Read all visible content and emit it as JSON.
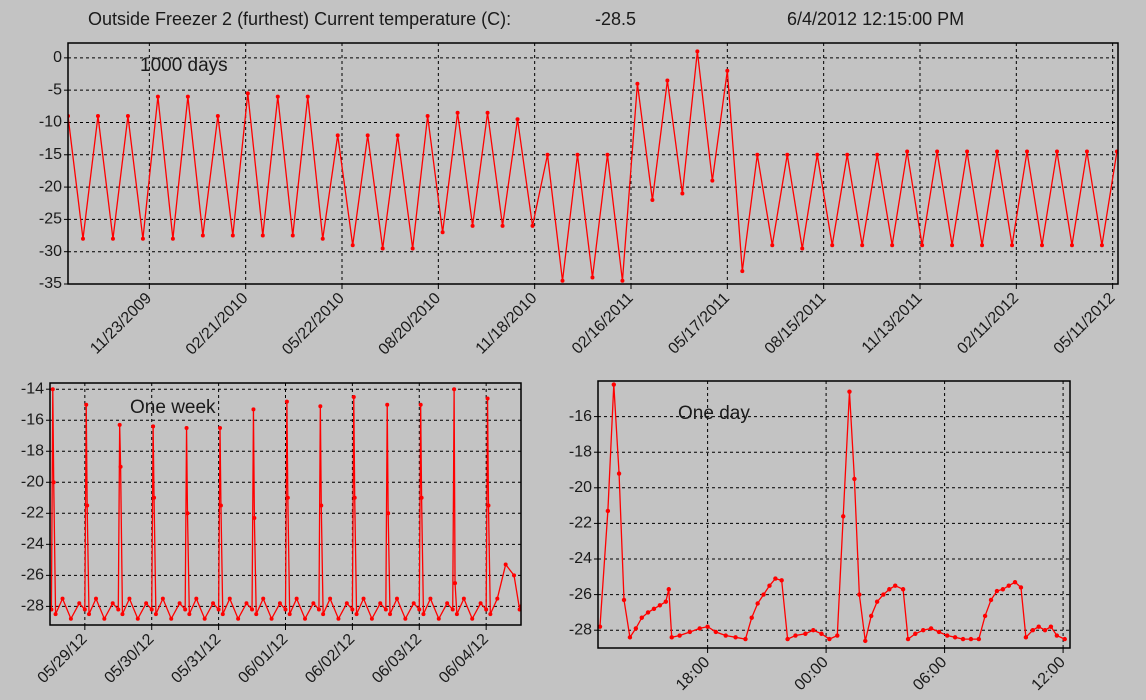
{
  "header": {
    "title": "Outside Freezer 2 (furthest)  Current temperature (C):",
    "current_temperature": -28.5,
    "timestamp": "6/4/2012 12:15:00 PM"
  },
  "chart_data": [
    {
      "type": "line",
      "annotation": "1000 days",
      "color": "#ff0000",
      "grid": true,
      "x": [
        "09/08/2009",
        "09/22/2009",
        "10/06/2009",
        "10/20/2009",
        "11/03/2009",
        "11/17/2009",
        "12/01/2009",
        "12/15/2009",
        "12/29/2009",
        "01/12/2010",
        "01/26/2010",
        "02/09/2010",
        "02/23/2010",
        "03/09/2010",
        "03/23/2010",
        "04/06/2010",
        "04/20/2010",
        "05/04/2010",
        "05/18/2010",
        "06/01/2010",
        "06/15/2010",
        "06/29/2010",
        "07/13/2010",
        "07/27/2010",
        "08/10/2010",
        "08/24/2010",
        "09/07/2010",
        "09/21/2010",
        "10/05/2010",
        "10/19/2010",
        "11/02/2010",
        "11/16/2010",
        "11/30/2010",
        "12/14/2010",
        "12/28/2010",
        "01/11/2011",
        "01/25/2011",
        "02/08/2011",
        "02/22/2011",
        "03/08/2011",
        "03/22/2011",
        "04/05/2011",
        "04/19/2011",
        "05/03/2011",
        "05/17/2011",
        "05/31/2011",
        "06/14/2011",
        "06/28/2011",
        "07/12/2011",
        "07/26/2011",
        "08/09/2011",
        "08/23/2011",
        "09/06/2011",
        "09/20/2011",
        "10/04/2011",
        "10/18/2011",
        "11/01/2011",
        "11/15/2011",
        "11/29/2011",
        "12/13/2011",
        "12/27/2011",
        "01/10/2012",
        "01/24/2012",
        "02/07/2012",
        "02/21/2012",
        "03/06/2012",
        "03/20/2012",
        "04/03/2012",
        "04/17/2012",
        "05/01/2012",
        "05/15/2012"
      ],
      "values": [
        -9,
        -28,
        -9,
        -28,
        -9,
        -28,
        -6,
        -28,
        -6,
        -27.5,
        -9,
        -27.5,
        -5.5,
        -27.5,
        -6,
        -27.5,
        -6,
        -28,
        -12,
        -29,
        -12,
        -29.5,
        -12,
        -29.5,
        -9,
        -27,
        -8.5,
        -26,
        -8.5,
        -26,
        -9.5,
        -26,
        -15,
        -34.5,
        -15,
        -34,
        -15,
        -34.5,
        -4,
        -22,
        -3.5,
        -21,
        1,
        -19,
        -2,
        -33,
        -15,
        -29,
        -15,
        -29.5,
        -15,
        -29,
        -15,
        -29,
        -15,
        -29,
        -14.5,
        -29,
        -14.5,
        -29,
        -14.5,
        -29,
        -14.5,
        -29,
        -14.5,
        -29,
        -14.5,
        -29,
        -14.5,
        -29,
        -14.5
      ],
      "xlim": [
        "09/08/2009",
        "05/16/2012"
      ],
      "xticks": [
        "11/23/2009",
        "02/21/2010",
        "05/22/2010",
        "08/20/2010",
        "11/18/2010",
        "02/16/2011",
        "05/17/2011",
        "08/15/2011",
        "11/13/2011",
        "02/11/2012",
        "05/11/2012"
      ],
      "ylim": [
        -35,
        2.3
      ],
      "yticks": [
        0,
        -5,
        -10,
        -15,
        -20,
        -25,
        -30,
        -35
      ]
    },
    {
      "type": "line",
      "annotation": "One week",
      "color": "#ff0000",
      "grid": true,
      "x": [
        "05/28/12 12:00",
        "05/28/12 12:30",
        "05/28/12 12:50",
        "05/28/12 13:30",
        "05/28/12 16:00",
        "05/28/12 19:00",
        "05/28/12 22:00",
        "05/29/12 00:00",
        "05/29/12 00:30",
        "05/29/12 00:50",
        "05/29/12 01:30",
        "05/29/12 04:00",
        "05/29/12 07:00",
        "05/29/12 10:00",
        "05/29/12 12:00",
        "05/29/12 12:30",
        "05/29/12 12:50",
        "05/29/12 13:30",
        "05/29/12 16:00",
        "05/29/12 19:00",
        "05/29/12 22:00",
        "05/30/12 00:00",
        "05/30/12 00:30",
        "05/30/12 00:50",
        "05/30/12 01:30",
        "05/30/12 04:00",
        "05/30/12 07:00",
        "05/30/12 10:00",
        "05/30/12 12:00",
        "05/30/12 12:30",
        "05/30/12 12:50",
        "05/30/12 13:30",
        "05/30/12 16:00",
        "05/30/12 19:00",
        "05/30/12 22:00",
        "05/31/12 00:00",
        "05/31/12 00:30",
        "05/31/12 00:50",
        "05/31/12 01:30",
        "05/31/12 04:00",
        "05/31/12 07:00",
        "05/31/12 10:00",
        "05/31/12 12:00",
        "05/31/12 12:30",
        "05/31/12 12:50",
        "05/31/12 13:30",
        "05/31/12 16:00",
        "05/31/12 19:00",
        "05/31/12 22:00",
        "06/01/12 00:00",
        "06/01/12 00:30",
        "06/01/12 00:50",
        "06/01/12 01:30",
        "06/01/12 04:00",
        "06/01/12 07:00",
        "06/01/12 10:00",
        "06/01/12 12:00",
        "06/01/12 12:30",
        "06/01/12 12:50",
        "06/01/12 13:30",
        "06/01/12 16:00",
        "06/01/12 19:00",
        "06/01/12 22:00",
        "06/02/12 00:00",
        "06/02/12 00:30",
        "06/02/12 00:50",
        "06/02/12 01:30",
        "06/02/12 04:00",
        "06/02/12 07:00",
        "06/02/12 10:00",
        "06/02/12 12:00",
        "06/02/12 12:30",
        "06/02/12 12:50",
        "06/02/12 13:30",
        "06/02/12 16:00",
        "06/02/12 19:00",
        "06/02/12 22:00",
        "06/03/12 00:00",
        "06/03/12 00:30",
        "06/03/12 00:50",
        "06/03/12 01:30",
        "06/03/12 04:00",
        "06/03/12 07:00",
        "06/03/12 10:00",
        "06/03/12 12:00",
        "06/03/12 12:30",
        "06/03/12 12:50",
        "06/03/12 13:30",
        "06/03/12 16:00",
        "06/03/12 19:00",
        "06/03/12 22:00",
        "06/04/12 00:00",
        "06/04/12 00:30",
        "06/04/12 00:50",
        "06/04/12 01:30",
        "06/04/12 04:00",
        "06/04/12 07:00",
        "06/04/12 10:00",
        "06/04/12 12:00",
        "06/04/12 12:30"
      ],
      "values": [
        -28.2,
        -14,
        -20,
        -28.5,
        -27.5,
        -28.8,
        -27.8,
        -28.2,
        -15,
        -21.5,
        -28.5,
        -27.5,
        -28.8,
        -27.8,
        -28.2,
        -16.3,
        -19,
        -28.5,
        -27.5,
        -28.8,
        -27.8,
        -28.2,
        -16.4,
        -21,
        -28.5,
        -27.5,
        -28.8,
        -27.8,
        -28.2,
        -16.5,
        -22,
        -28.5,
        -27.5,
        -28.8,
        -27.8,
        -28.2,
        -16.5,
        -21.5,
        -28.5,
        -27.5,
        -28.8,
        -27.8,
        -28.2,
        -15.3,
        -22.3,
        -28.5,
        -27.5,
        -28.8,
        -27.8,
        -28.2,
        -14.8,
        -21,
        -28.5,
        -27.5,
        -28.8,
        -27.8,
        -28.2,
        -15.1,
        -21.5,
        -28.5,
        -27.5,
        -28.8,
        -27.8,
        -28.2,
        -14.5,
        -21,
        -28.5,
        -27.5,
        -28.8,
        -27.8,
        -28.2,
        -15,
        -22,
        -28.5,
        -27.5,
        -28.8,
        -27.8,
        -28.2,
        -15,
        -21,
        -28.5,
        -27.5,
        -28.8,
        -27.8,
        -28.2,
        -14,
        -26.5,
        -28.5,
        -27.5,
        -28.8,
        -27.8,
        -28.2,
        -14.6,
        -21.5,
        -28.5,
        -27.5,
        -25.3,
        -26,
        -28.2,
        -28
      ],
      "xlim": [
        "05/28/12 11:30",
        "06/04/12 12:30"
      ],
      "xticks": [
        "05/29/12",
        "05/30/12",
        "05/31/12",
        "06/01/12",
        "06/02/12",
        "06/03/12",
        "06/04/12"
      ],
      "ylim": [
        -29.2,
        -13.6
      ],
      "yticks": [
        -14,
        -16,
        -18,
        -20,
        -22,
        -24,
        -26,
        -28
      ]
    },
    {
      "type": "line",
      "annotation": "One day",
      "color": "#ff0000",
      "grid": true,
      "x": [
        "12:33",
        "12:57",
        "13:15",
        "13:31",
        "13:46",
        "14:04",
        "14:22",
        "14:40",
        "14:59",
        "15:17",
        "15:35",
        "15:53",
        "16:02",
        "16:11",
        "16:35",
        "17:06",
        "17:36",
        "18:00",
        "18:25",
        "18:55",
        "19:25",
        "19:55",
        "20:14",
        "20:32",
        "20:50",
        "21:08",
        "21:26",
        "21:45",
        "22:03",
        "22:27",
        "22:57",
        "23:21",
        "23:46",
        "00:10",
        "00:34",
        "00:52",
        "01:11",
        "01:26",
        "01:41",
        "01:59",
        "02:17",
        "02:35",
        "02:54",
        "03:12",
        "03:30",
        "03:54",
        "04:09",
        "04:31",
        "04:55",
        "05:19",
        "05:43",
        "06:08",
        "06:32",
        "06:56",
        "07:20",
        "07:44",
        "08:03",
        "08:21",
        "08:39",
        "08:57",
        "09:15",
        "09:34",
        "09:52",
        "10:07",
        "10:28",
        "10:46",
        "11:05",
        "11:23",
        "11:41",
        "12:05"
      ],
      "values": [
        -27.8,
        -21.3,
        -14.2,
        -19.2,
        -26.3,
        -28.4,
        -27.9,
        -27.3,
        -27,
        -26.8,
        -26.6,
        -26.4,
        -25.7,
        -28.4,
        -28.3,
        -28.1,
        -27.9,
        -27.8,
        -28.1,
        -28.3,
        -28.4,
        -28.5,
        -27.3,
        -26.5,
        -26,
        -25.5,
        -25.1,
        -25.2,
        -28.5,
        -28.3,
        -28.2,
        -28,
        -28.2,
        -28.5,
        -28.3,
        -21.6,
        -14.6,
        -19.5,
        -26,
        -28.6,
        -27.2,
        -26.4,
        -26,
        -25.7,
        -25.5,
        -25.7,
        -28.5,
        -28.2,
        -28,
        -27.9,
        -28.1,
        -28.3,
        -28.4,
        -28.5,
        -28.5,
        -28.5,
        -27.2,
        -26.3,
        -25.8,
        -25.7,
        -25.5,
        -25.3,
        -25.6,
        -28.4,
        -28,
        -27.8,
        -28,
        -27.8,
        -28.3,
        -28.5
      ],
      "xlim": [
        "12:27",
        "12:21"
      ],
      "xticks": [
        "18:00",
        "00:00",
        "06:00",
        "12:00"
      ],
      "ylim": [
        -29,
        -14
      ],
      "yticks": [
        -16,
        -18,
        -20,
        -22,
        -24,
        -26,
        -28
      ]
    }
  ]
}
